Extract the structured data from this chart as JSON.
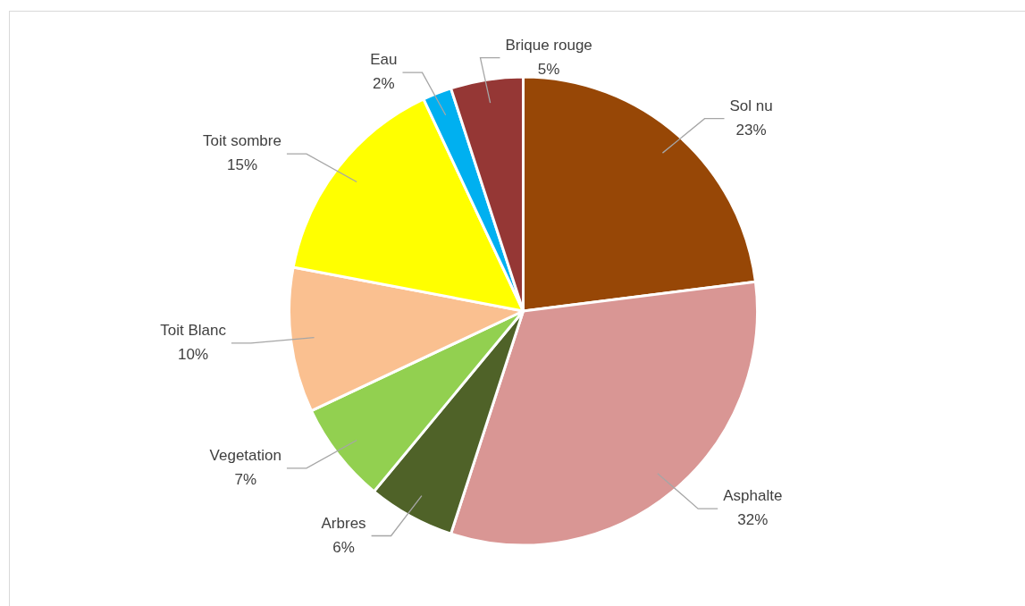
{
  "chart_data": {
    "type": "pie",
    "categories": [
      "Sol nu",
      "Asphalte",
      "Arbres",
      "Vegetation",
      "Toit Blanc",
      "Toit sombre",
      "Eau",
      "Brique rouge"
    ],
    "values": [
      23,
      32,
      6,
      7,
      10,
      15,
      2,
      5
    ],
    "colors": [
      "#974706",
      "#d99694",
      "#4f6228",
      "#92d050",
      "#fac090",
      "#ffff00",
      "#00b0f0",
      "#953735"
    ],
    "value_labels": [
      "23%",
      "32%",
      "6%",
      "7%",
      "10%",
      "15%",
      "2%",
      "5%"
    ],
    "legend": false
  }
}
